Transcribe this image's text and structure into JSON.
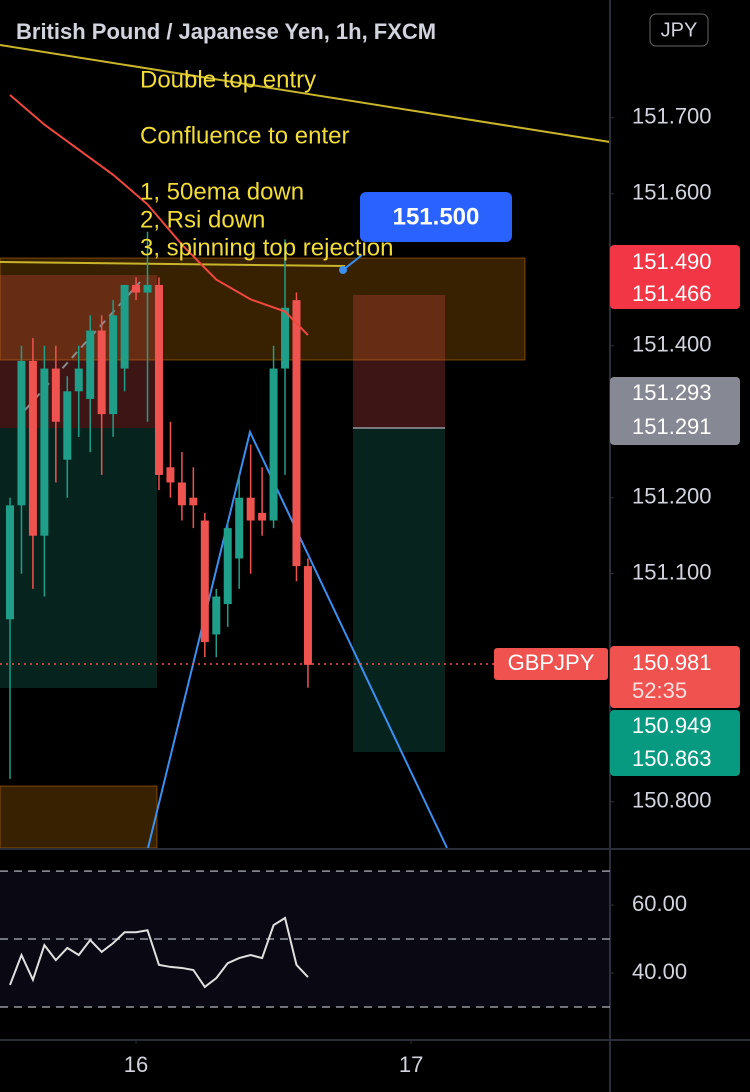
{
  "header": {
    "title": "British Pound / Japanese Yen, 1h, FXCM",
    "currency": "JPY"
  },
  "chart_data": [
    {
      "type": "candlestick",
      "x": [
        0,
        1,
        2,
        3,
        4,
        5,
        6,
        7,
        8,
        9,
        10,
        11,
        12,
        13,
        14,
        15,
        16,
        17,
        18,
        19,
        20,
        21,
        22,
        23,
        24,
        25,
        26
      ],
      "open": [
        151.04,
        151.19,
        151.38,
        151.15,
        151.37,
        151.25,
        151.34,
        151.33,
        151.42,
        151.31,
        151.37,
        151.48,
        151.47,
        151.48,
        151.24,
        151.22,
        151.2,
        151.17,
        151.02,
        151.06,
        151.12,
        151.2,
        151.18,
        151.17,
        151.37,
        151.46,
        151.11
      ],
      "high": [
        151.2,
        151.4,
        151.41,
        151.4,
        151.4,
        151.36,
        151.4,
        151.44,
        151.44,
        151.46,
        151.48,
        151.49,
        151.55,
        151.49,
        151.3,
        151.26,
        151.24,
        151.18,
        151.08,
        151.17,
        151.23,
        151.27,
        151.24,
        151.4,
        151.54,
        151.47,
        151.12
      ],
      "low": [
        150.83,
        151.1,
        151.08,
        151.07,
        151.22,
        151.2,
        151.28,
        151.26,
        151.23,
        151.28,
        151.34,
        151.46,
        151.3,
        151.21,
        151.2,
        151.17,
        151.16,
        150.99,
        150.99,
        151.03,
        151.08,
        151.1,
        151.15,
        151.16,
        151.23,
        151.09,
        150.95
      ],
      "close": [
        151.19,
        151.38,
        151.15,
        151.37,
        151.3,
        151.34,
        151.37,
        151.42,
        151.31,
        151.44,
        151.48,
        151.47,
        151.48,
        151.23,
        151.22,
        151.19,
        151.19,
        151.01,
        151.07,
        151.16,
        151.2,
        151.17,
        151.17,
        151.37,
        151.45,
        151.11,
        150.98
      ],
      "up_color": "#1f9e89",
      "down_color": "#ef5350",
      "xlim": [
        -0.873,
        52.36
      ],
      "ylim": [
        150.739,
        151.855
      ],
      "yticks": [
        {
          "value": 151.7,
          "label": "151.700"
        },
        {
          "value": 151.6,
          "label": "151.600"
        },
        {
          "value": 151.4,
          "label": "151.400"
        },
        {
          "value": 151.2,
          "label": "151.200"
        },
        {
          "value": 151.1,
          "label": "151.100"
        },
        {
          "value": 150.8,
          "label": "150.800"
        }
      ],
      "xticks": [
        {
          "value": 11,
          "label": "16"
        },
        {
          "value": 35,
          "label": "17"
        }
      ],
      "lines": [
        {
          "color": "#f0483e",
          "x": [
            0,
            3,
            6,
            9,
            12,
            15,
            18,
            21,
            24,
            26
          ],
          "values": [
            151.73,
            151.691,
            151.658,
            151.625,
            151.586,
            151.533,
            151.487,
            151.461,
            151.445,
            151.414
          ]
        }
      ],
      "annotations": [
        "Double top entry",
        "Confluence to enter",
        "1, 50ema down",
        "2, Rsi down",
        "3, spinning top rejection"
      ],
      "callout": "151.500",
      "price_labels": [
        "151.490",
        "151.466",
        "151.293",
        "151.291",
        "150.949",
        "150.863"
      ],
      "symbol": "GBPJPY",
      "last_price": "150.981",
      "countdown": "52:35"
    },
    {
      "type": "line",
      "color": "#e0e0e0",
      "values": [
        36.5,
        45.3,
        38,
        48.2,
        43.8,
        47.4,
        45.3,
        49.7,
        46.2,
        48.8,
        52,
        52,
        52.6,
        42.4,
        41.8,
        41.5,
        40.9,
        35.9,
        38.5,
        42.9,
        44.4,
        45.3,
        44.4,
        54.1,
        56.2,
        42.4,
        38.8
      ],
      "ylim": [
        20.3,
        76.2
      ],
      "yticks": [
        {
          "value": 60,
          "label": "60.00"
        },
        {
          "value": 40,
          "label": "40.00"
        }
      ],
      "bands": [
        70,
        50,
        30
      ]
    }
  ]
}
